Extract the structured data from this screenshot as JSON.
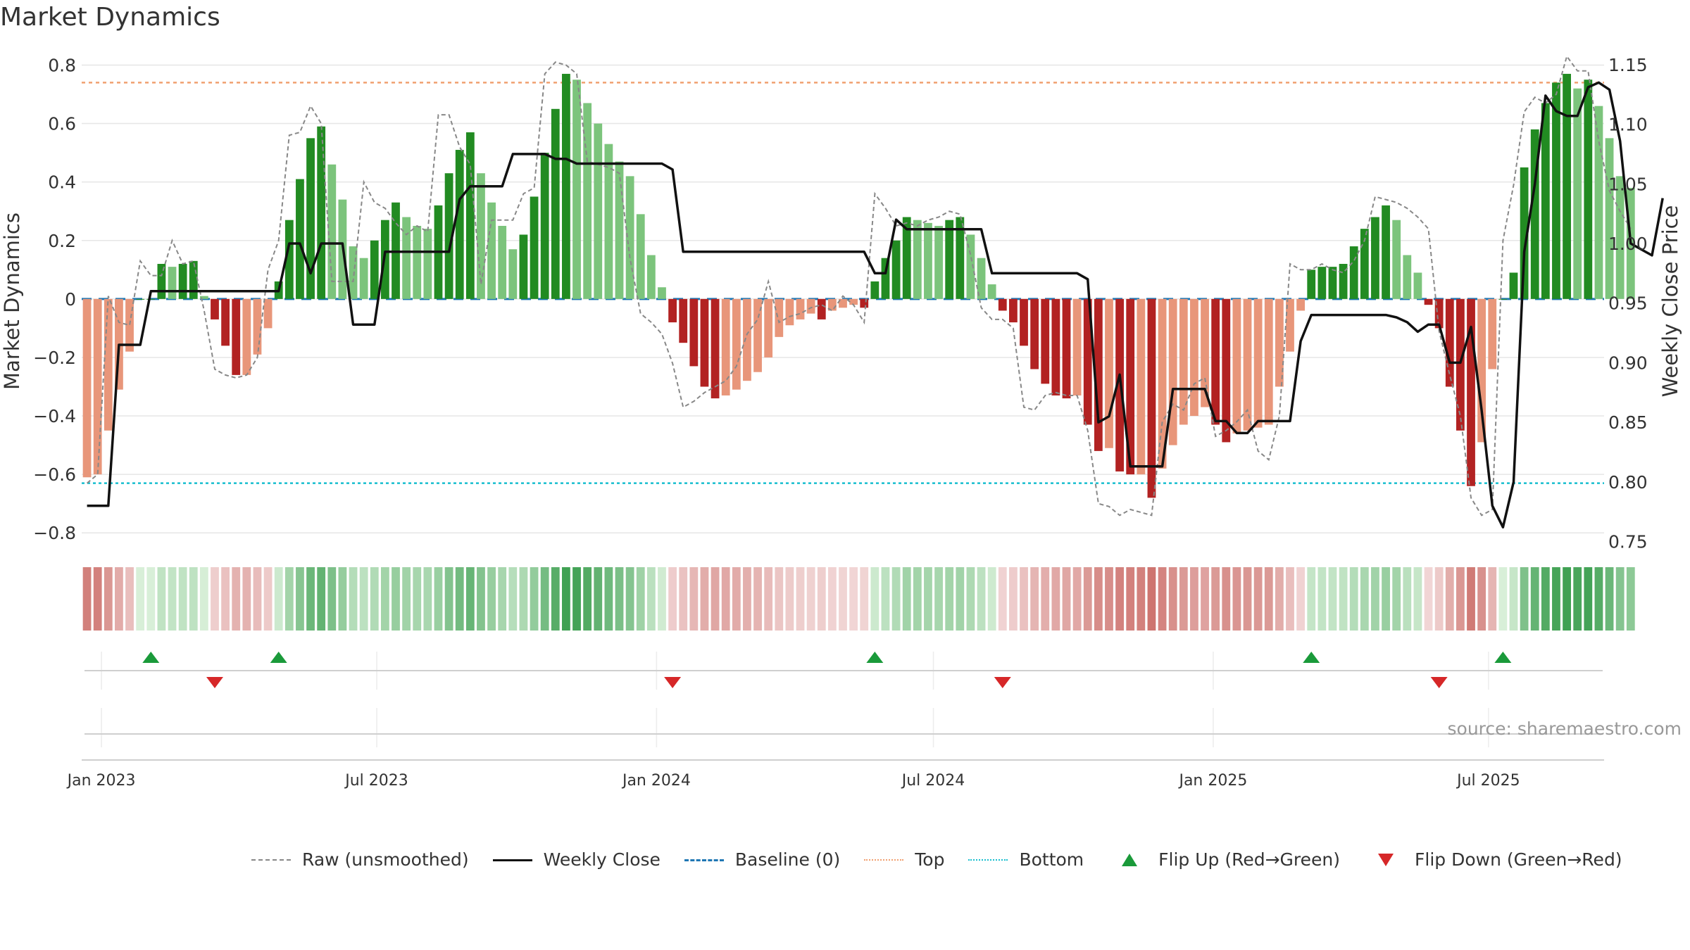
{
  "page": {
    "title": "Market Dynamics",
    "source": "source: sharemaestro.com"
  },
  "chart_data": {
    "type": "bar",
    "title": "Market Dynamics",
    "ylabel_left": "Market Dynamics",
    "ylabel_right": "Weekly Close Price",
    "ylim_left": [
      -0.85,
      0.83
    ],
    "ylim_right": [
      0.745,
      1.157
    ],
    "yticks_left": [
      "0.8",
      "0.6",
      "0.4",
      "0.2",
      "0",
      "−0.2",
      "−0.4",
      "−0.6",
      "−0.8"
    ],
    "yticks_right": [
      "1.15",
      "1.10",
      "1.05",
      "1.00",
      "0.95",
      "0.90",
      "0.85",
      "0.80",
      "0.75"
    ],
    "xticks": [
      "Jan 2023",
      "Jul 2023",
      "Jan 2024",
      "Jul 2024",
      "Jan 2025",
      "Jul 2025"
    ],
    "x_range": [
      "2022-12-19",
      "2025-09-15"
    ],
    "bar_interval": "weekly",
    "top_level": 0.74,
    "bottom_level": -0.63,
    "baseline": 0,
    "grid": true,
    "legend_position": "bottom",
    "series": [
      {
        "name": "Market Dynamics",
        "kind": "bar",
        "values": [
          -0.61,
          -0.6,
          -0.45,
          -0.31,
          -0.18,
          0.0,
          0.0,
          0.12,
          0.11,
          0.12,
          0.13,
          0.01,
          -0.07,
          -0.16,
          -0.26,
          -0.26,
          -0.19,
          -0.1,
          0.06,
          0.27,
          0.41,
          0.55,
          0.59,
          0.46,
          0.34,
          0.18,
          0.14,
          0.2,
          0.27,
          0.33,
          0.28,
          0.25,
          0.24,
          0.32,
          0.43,
          0.51,
          0.57,
          0.43,
          0.33,
          0.25,
          0.17,
          0.22,
          0.35,
          0.5,
          0.65,
          0.77,
          0.75,
          0.67,
          0.6,
          0.53,
          0.47,
          0.42,
          0.29,
          0.15,
          0.04,
          -0.08,
          -0.15,
          -0.23,
          -0.3,
          -0.34,
          -0.33,
          -0.31,
          -0.28,
          -0.25,
          -0.2,
          -0.13,
          -0.09,
          -0.07,
          -0.05,
          -0.07,
          -0.04,
          -0.03,
          -0.02,
          -0.03,
          0.06,
          0.14,
          0.2,
          0.28,
          0.27,
          0.26,
          0.25,
          0.27,
          0.28,
          0.22,
          0.14,
          0.05,
          -0.04,
          -0.08,
          -0.16,
          -0.24,
          -0.29,
          -0.33,
          -0.34,
          -0.33,
          -0.43,
          -0.52,
          -0.51,
          -0.59,
          -0.6,
          -0.6,
          -0.68,
          -0.58,
          -0.5,
          -0.43,
          -0.4,
          -0.37,
          -0.43,
          -0.49,
          -0.46,
          -0.45,
          -0.44,
          -0.43,
          -0.3,
          -0.18,
          -0.04,
          0.1,
          0.11,
          0.11,
          0.12,
          0.18,
          0.24,
          0.28,
          0.32,
          0.27,
          0.15,
          0.09,
          -0.02,
          -0.1,
          -0.3,
          -0.45,
          -0.64,
          -0.49,
          -0.24,
          0.0,
          0.09,
          0.45,
          0.58,
          0.67,
          0.74,
          0.77,
          0.72,
          0.75,
          0.66,
          0.55,
          0.42,
          0.38
        ]
      },
      {
        "name": "Raw (unsmoothed)",
        "kind": "line",
        "values": [
          -0.63,
          -0.6,
          0.01,
          -0.08,
          -0.09,
          0.13,
          0.08,
          0.08,
          0.2,
          0.12,
          0.13,
          -0.04,
          -0.24,
          -0.26,
          -0.27,
          -0.26,
          -0.2,
          0.1,
          0.2,
          0.56,
          0.57,
          0.66,
          0.6,
          0.06,
          0.06,
          0.06,
          0.4,
          0.33,
          0.31,
          0.26,
          0.22,
          0.25,
          0.23,
          0.63,
          0.63,
          0.52,
          0.46,
          0.05,
          0.27,
          0.27,
          0.27,
          0.36,
          0.38,
          0.77,
          0.81,
          0.8,
          0.77,
          0.47,
          0.46,
          0.45,
          0.43,
          0.14,
          -0.05,
          -0.08,
          -0.12,
          -0.22,
          -0.37,
          -0.35,
          -0.32,
          -0.3,
          -0.28,
          -0.23,
          -0.12,
          -0.07,
          0.06,
          -0.08,
          -0.06,
          -0.05,
          -0.03,
          -0.02,
          -0.04,
          0.01,
          -0.02,
          -0.08,
          0.36,
          0.31,
          0.25,
          0.26,
          0.25,
          0.27,
          0.28,
          0.3,
          0.29,
          0.15,
          -0.03,
          -0.07,
          -0.07,
          -0.1,
          -0.37,
          -0.38,
          -0.33,
          -0.32,
          -0.33,
          -0.33,
          -0.45,
          -0.7,
          -0.71,
          -0.74,
          -0.72,
          -0.73,
          -0.74,
          -0.42,
          -0.36,
          -0.38,
          -0.29,
          -0.27,
          -0.47,
          -0.45,
          -0.42,
          -0.38,
          -0.52,
          -0.55,
          -0.4,
          0.12,
          0.1,
          0.1,
          0.12,
          0.1,
          0.09,
          0.13,
          0.2,
          0.35,
          0.34,
          0.33,
          0.31,
          0.28,
          0.24,
          -0.11,
          -0.26,
          -0.4,
          -0.68,
          -0.74,
          -0.72,
          0.2,
          0.39,
          0.64,
          0.69,
          0.67,
          0.7,
          0.83,
          0.78,
          0.78,
          0.54,
          0.37,
          0.3,
          0.24
        ]
      },
      {
        "name": "Weekly Close",
        "kind": "line",
        "axis": "right",
        "values": [
          0.78,
          0.78,
          0.78,
          0.915,
          0.915,
          0.915,
          0.96,
          0.96,
          0.96,
          0.96,
          0.96,
          0.96,
          0.96,
          0.96,
          0.96,
          0.96,
          0.96,
          0.96,
          0.96,
          1.0,
          1.0,
          0.975,
          1.0,
          1.0,
          1.0,
          0.932,
          0.932,
          0.932,
          0.993,
          0.993,
          0.993,
          0.993,
          0.993,
          0.993,
          0.993,
          1.037,
          1.048,
          1.048,
          1.048,
          1.048,
          1.075,
          1.075,
          1.075,
          1.075,
          1.071,
          1.071,
          1.067,
          1.067,
          1.067,
          1.067,
          1.067,
          1.067,
          1.067,
          1.067,
          1.067,
          1.062,
          0.993,
          0.993,
          0.993,
          0.993,
          0.993,
          0.993,
          0.993,
          0.993,
          0.993,
          0.993,
          0.993,
          0.993,
          0.993,
          0.993,
          0.993,
          0.993,
          0.993,
          0.993,
          0.975,
          0.975,
          1.02,
          1.012,
          1.012,
          1.012,
          1.012,
          1.012,
          1.012,
          1.012,
          1.012,
          0.975,
          0.975,
          0.975,
          0.975,
          0.975,
          0.975,
          0.975,
          0.975,
          0.975,
          0.97,
          0.85,
          0.855,
          0.89,
          0.813,
          0.813,
          0.813,
          0.813,
          0.878,
          0.878,
          0.878,
          0.878,
          0.851,
          0.851,
          0.841,
          0.841,
          0.851,
          0.851,
          0.851,
          0.851,
          0.918,
          0.94,
          0.94,
          0.94,
          0.94,
          0.94,
          0.94,
          0.94,
          0.94,
          0.938,
          0.934,
          0.926,
          0.932,
          0.932,
          0.9,
          0.9,
          0.93,
          0.86,
          0.78,
          0.762,
          0.8,
          0.993,
          1.05,
          1.124,
          1.111,
          1.107,
          1.107,
          1.131,
          1.135,
          1.129,
          1.086,
          1.0,
          0.995,
          0.99,
          1.038
        ]
      }
    ],
    "flips": [
      {
        "name": "Flip Up (Red→Green)",
        "week_index": [
          6,
          18,
          74,
          115,
          133
        ]
      },
      {
        "name": "Flip Down (Green→Red)",
        "week_index": [
          12,
          55,
          86,
          127
        ]
      }
    ],
    "colors": {
      "strong_up": "#228b22",
      "weak_up": "#7cc47c",
      "strong_down": "#b22222",
      "weak_down": "#e8967a",
      "raw": "#888888",
      "close": "#111111",
      "baseline": "#1f77b4",
      "top": "#f0a070",
      "bottom": "#17becf",
      "flip_up": "#1a9a3a",
      "flip_down": "#d62728"
    }
  },
  "legend": [
    {
      "label": "Raw (unsmoothed)",
      "style": "dashed-gray"
    },
    {
      "label": "Weekly Close",
      "style": "solid-black"
    },
    {
      "label": "Baseline (0)",
      "style": "dashed-blue"
    },
    {
      "label": "Top",
      "style": "dotted-orange"
    },
    {
      "label": "Bottom",
      "style": "dotted-cyan"
    },
    {
      "label": "Flip Up (Red→Green)",
      "style": "triangle-up"
    },
    {
      "label": "Flip Down (Green→Red)",
      "style": "triangle-down"
    }
  ]
}
